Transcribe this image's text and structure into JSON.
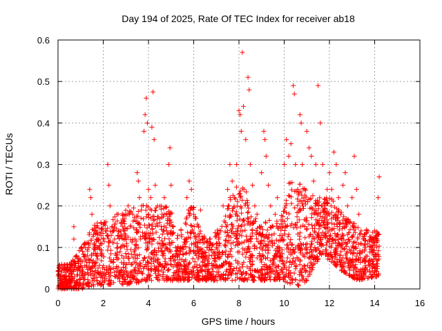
{
  "chart_data": {
    "type": "scatter",
    "title": "Day 194 of 2025, Rate Of TEC Index for receiver ab18",
    "xlabel": "GPS time / hours",
    "ylabel": "ROTI / TECUs",
    "xlim": [
      0,
      16
    ],
    "ylim": [
      0,
      0.6
    ],
    "xticks": [
      0,
      2,
      4,
      6,
      8,
      10,
      12,
      14,
      16
    ],
    "yticks": [
      0,
      0.1,
      0.2,
      0.3,
      0.4,
      0.5,
      0.6
    ],
    "xtick_labels": [
      "0",
      "2",
      "4",
      "6",
      "8",
      "10",
      "12",
      "14",
      "16"
    ],
    "ytick_labels": [
      "0",
      "0.1",
      "0.2",
      "0.3",
      "0.4",
      "0.5",
      "0.6"
    ],
    "grid": true,
    "marker": "+",
    "color": "#ff0000",
    "series": [
      {
        "name": "ROTI",
        "points": [
          [
            0.05,
            0.05
          ],
          [
            0.1,
            0.02
          ],
          [
            0.15,
            0.04
          ],
          [
            0.2,
            0.03
          ],
          [
            0.3,
            0.05
          ],
          [
            0.4,
            0.02
          ],
          [
            0.5,
            0.06
          ],
          [
            0.6,
            0.04
          ],
          [
            0.7,
            0.15
          ],
          [
            0.7,
            0.12
          ],
          [
            0.8,
            0.08
          ],
          [
            0.9,
            0.05
          ],
          [
            1.0,
            0.07
          ],
          [
            1.1,
            0.04
          ],
          [
            1.2,
            0.1
          ],
          [
            1.3,
            0.08
          ],
          [
            1.4,
            0.24
          ],
          [
            1.45,
            0.22
          ],
          [
            1.5,
            0.18
          ],
          [
            1.6,
            0.14
          ],
          [
            1.7,
            0.12
          ],
          [
            1.8,
            0.1
          ],
          [
            1.9,
            0.16
          ],
          [
            2.0,
            0.12
          ],
          [
            2.1,
            0.14
          ],
          [
            2.2,
            0.3
          ],
          [
            2.25,
            0.25
          ],
          [
            2.3,
            0.2
          ],
          [
            2.4,
            0.15
          ],
          [
            2.5,
            0.12
          ],
          [
            2.6,
            0.18
          ],
          [
            2.7,
            0.14
          ],
          [
            2.8,
            0.16
          ],
          [
            2.9,
            0.12
          ],
          [
            3.0,
            0.18
          ],
          [
            3.1,
            0.2
          ],
          [
            3.2,
            0.15
          ],
          [
            3.3,
            0.18
          ],
          [
            3.4,
            0.12
          ],
          [
            3.5,
            0.28
          ],
          [
            3.55,
            0.26
          ],
          [
            3.6,
            0.22
          ],
          [
            3.7,
            0.2
          ],
          [
            3.8,
            0.38
          ],
          [
            3.85,
            0.42
          ],
          [
            3.9,
            0.46
          ],
          [
            3.95,
            0.4
          ],
          [
            4.0,
            0.24
          ],
          [
            4.1,
            0.22
          ],
          [
            4.15,
            0.39
          ],
          [
            4.2,
            0.475
          ],
          [
            4.25,
            0.36
          ],
          [
            4.3,
            0.25
          ],
          [
            4.4,
            0.2
          ],
          [
            4.5,
            0.16
          ],
          [
            4.6,
            0.18
          ],
          [
            4.7,
            0.22
          ],
          [
            4.8,
            0.14
          ],
          [
            4.9,
            0.3
          ],
          [
            4.95,
            0.34
          ],
          [
            5.0,
            0.25
          ],
          [
            5.1,
            0.15
          ],
          [
            5.2,
            0.1
          ],
          [
            5.3,
            0.08
          ],
          [
            5.5,
            0.1
          ],
          [
            5.6,
            0.12
          ],
          [
            5.7,
            0.22
          ],
          [
            5.8,
            0.26
          ],
          [
            5.9,
            0.24
          ],
          [
            6.0,
            0.18
          ],
          [
            6.1,
            0.12
          ],
          [
            6.2,
            0.09
          ],
          [
            6.3,
            0.19
          ],
          [
            6.4,
            0.12
          ],
          [
            6.5,
            0.08
          ],
          [
            6.6,
            0.1
          ],
          [
            6.7,
            0.12
          ],
          [
            6.8,
            0.08
          ],
          [
            7.0,
            0.1
          ],
          [
            7.1,
            0.12
          ],
          [
            7.2,
            0.14
          ],
          [
            7.3,
            0.2
          ],
          [
            7.4,
            0.16
          ],
          [
            7.5,
            0.24
          ],
          [
            7.6,
            0.3
          ],
          [
            7.7,
            0.26
          ],
          [
            7.8,
            0.22
          ],
          [
            7.9,
            0.3
          ],
          [
            8.0,
            0.43
          ],
          [
            8.05,
            0.42
          ],
          [
            8.1,
            0.38
          ],
          [
            8.15,
            0.57
          ],
          [
            8.2,
            0.44
          ],
          [
            8.3,
            0.36
          ],
          [
            8.4,
            0.51
          ],
          [
            8.45,
            0.48
          ],
          [
            8.5,
            0.3
          ],
          [
            8.6,
            0.25
          ],
          [
            8.7,
            0.2
          ],
          [
            8.8,
            0.18
          ],
          [
            8.9,
            0.15
          ],
          [
            9.0,
            0.28
          ],
          [
            9.1,
            0.38
          ],
          [
            9.15,
            0.36
          ],
          [
            9.2,
            0.32
          ],
          [
            9.3,
            0.25
          ],
          [
            9.4,
            0.2
          ],
          [
            9.5,
            0.15
          ],
          [
            9.6,
            0.18
          ],
          [
            9.7,
            0.22
          ],
          [
            9.8,
            0.15
          ],
          [
            9.9,
            0.12
          ],
          [
            10.0,
            0.3
          ],
          [
            10.1,
            0.36
          ],
          [
            10.2,
            0.32
          ],
          [
            10.3,
            0.35
          ],
          [
            10.4,
            0.49
          ],
          [
            10.45,
            0.47
          ],
          [
            10.5,
            0.3
          ],
          [
            10.6,
            0.24
          ],
          [
            10.7,
            0.42
          ],
          [
            10.75,
            0.4
          ],
          [
            10.8,
            0.3
          ],
          [
            10.9,
            0.24
          ],
          [
            11.0,
            0.38
          ],
          [
            11.1,
            0.34
          ],
          [
            11.2,
            0.32
          ],
          [
            11.3,
            0.26
          ],
          [
            11.4,
            0.3
          ],
          [
            11.5,
            0.49
          ],
          [
            11.6,
            0.4
          ],
          [
            11.7,
            0.3
          ],
          [
            11.8,
            0.2
          ],
          [
            11.9,
            0.24
          ],
          [
            12.0,
            0.28
          ],
          [
            12.1,
            0.24
          ],
          [
            12.2,
            0.33
          ],
          [
            12.3,
            0.3
          ],
          [
            12.4,
            0.22
          ],
          [
            12.5,
            0.18
          ],
          [
            12.6,
            0.25
          ],
          [
            12.7,
            0.28
          ],
          [
            12.8,
            0.2
          ],
          [
            12.9,
            0.16
          ],
          [
            13.0,
            0.22
          ],
          [
            13.1,
            0.32
          ],
          [
            13.2,
            0.24
          ],
          [
            13.3,
            0.18
          ],
          [
            13.4,
            0.14
          ],
          [
            13.5,
            0.12
          ],
          [
            13.6,
            0.1
          ],
          [
            13.7,
            0.14
          ],
          [
            13.8,
            0.12
          ],
          [
            13.9,
            0.1
          ],
          [
            14.0,
            0.14
          ],
          [
            14.1,
            0.12
          ],
          [
            14.15,
            0.22
          ],
          [
            14.2,
            0.27
          ]
        ]
      }
    ],
    "density_profile_max": [
      [
        0,
        0.06
      ],
      [
        0.5,
        0.06
      ],
      [
        1.0,
        0.1
      ],
      [
        1.3,
        0.12
      ],
      [
        1.5,
        0.16
      ],
      [
        2.0,
        0.16
      ],
      [
        2.5,
        0.18
      ],
      [
        3.0,
        0.19
      ],
      [
        3.5,
        0.2
      ],
      [
        3.8,
        0.21
      ],
      [
        4.0,
        0.2
      ],
      [
        4.5,
        0.2
      ],
      [
        5.0,
        0.2
      ],
      [
        5.2,
        0.12
      ],
      [
        5.5,
        0.15
      ],
      [
        5.8,
        0.2
      ],
      [
        6.0,
        0.2
      ],
      [
        6.3,
        0.14
      ],
      [
        6.6,
        0.12
      ],
      [
        7.0,
        0.14
      ],
      [
        7.3,
        0.16
      ],
      [
        7.6,
        0.22
      ],
      [
        8.0,
        0.26
      ],
      [
        8.3,
        0.26
      ],
      [
        8.6,
        0.18
      ],
      [
        9.0,
        0.16
      ],
      [
        9.4,
        0.17
      ],
      [
        9.8,
        0.16
      ],
      [
        10.2,
        0.26
      ],
      [
        10.6,
        0.26
      ],
      [
        11.0,
        0.24
      ],
      [
        11.4,
        0.22
      ],
      [
        11.8,
        0.22
      ],
      [
        12.2,
        0.22
      ],
      [
        12.6,
        0.18
      ],
      [
        13.0,
        0.16
      ],
      [
        13.4,
        0.15
      ],
      [
        13.8,
        0.14
      ],
      [
        14.2,
        0.14
      ]
    ],
    "density_profile_min": [
      [
        0,
        0.0
      ],
      [
        1.0,
        0.0
      ],
      [
        2.0,
        0.01
      ],
      [
        3.0,
        0.01
      ],
      [
        4.0,
        0.02
      ],
      [
        5.0,
        0.02
      ],
      [
        6.0,
        0.02
      ],
      [
        7.0,
        0.02
      ],
      [
        8.0,
        0.02
      ],
      [
        9.0,
        0.02
      ],
      [
        10.0,
        0.02
      ],
      [
        10.5,
        0.0
      ],
      [
        11.0,
        0.02
      ],
      [
        11.6,
        0.08
      ],
      [
        12.0,
        0.07
      ],
      [
        12.6,
        0.04
      ],
      [
        13.2,
        0.02
      ],
      [
        14.2,
        0.03
      ]
    ]
  }
}
